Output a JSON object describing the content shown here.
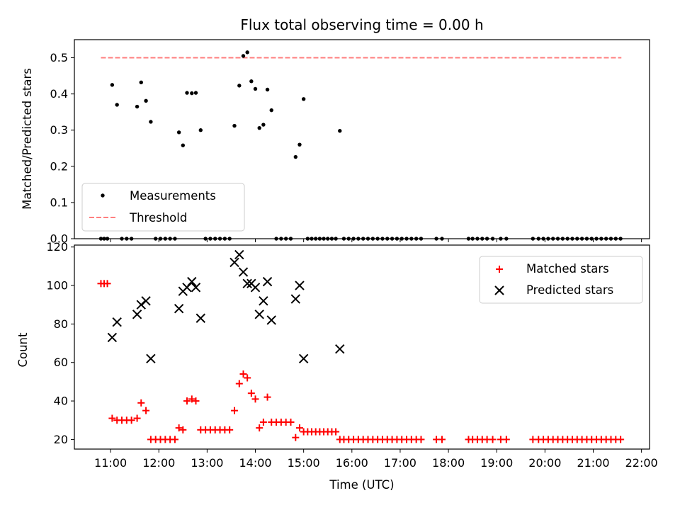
{
  "chart_data": [
    {
      "type": "scatter",
      "title": "Flux total observing time = 0.00 h",
      "xlabel": "",
      "ylabel": "Matched/Predicted stars",
      "xlim": [
        "10:15",
        "22:10"
      ],
      "ylim": [
        0,
        0.55
      ],
      "yticks": [
        0.0,
        0.1,
        0.2,
        0.3,
        0.4,
        0.5
      ],
      "yticklabels": [
        "0.0",
        "0.1",
        "0.2",
        "0.3",
        "0.4",
        "0.5"
      ],
      "legend": {
        "position": "lower-left",
        "entries": [
          "Measurements",
          "Threshold"
        ]
      },
      "series": [
        {
          "name": "Measurements",
          "style": "dot",
          "color": "#000000",
          "points": [
            [
              "10:48",
              0.0
            ],
            [
              "10:52",
              0.0
            ],
            [
              "10:56",
              0.0
            ],
            [
              "11:02",
              0.425
            ],
            [
              "11:08",
              0.37
            ],
            [
              "11:14",
              0.0
            ],
            [
              "11:20",
              0.0
            ],
            [
              "11:26",
              0.0
            ],
            [
              "11:33",
              0.365
            ],
            [
              "11:38",
              0.432
            ],
            [
              "11:44",
              0.381
            ],
            [
              "11:50",
              0.323
            ],
            [
              "11:56",
              0.0
            ],
            [
              "12:02",
              0.0
            ],
            [
              "12:08",
              0.0
            ],
            [
              "12:14",
              0.0
            ],
            [
              "12:20",
              0.0
            ],
            [
              "12:25",
              0.294
            ],
            [
              "12:30",
              0.258
            ],
            [
              "12:35",
              0.403
            ],
            [
              "12:41",
              0.402
            ],
            [
              "12:46",
              0.403
            ],
            [
              "12:52",
              0.3
            ],
            [
              "12:58",
              0.0
            ],
            [
              "13:04",
              0.0
            ],
            [
              "13:10",
              0.0
            ],
            [
              "13:16",
              0.0
            ],
            [
              "13:22",
              0.0
            ],
            [
              "13:28",
              0.0
            ],
            [
              "13:34",
              0.312
            ],
            [
              "13:40",
              0.423
            ],
            [
              "13:45",
              0.505
            ],
            [
              "13:50",
              0.515
            ],
            [
              "13:55",
              0.435
            ],
            [
              "14:00",
              0.414
            ],
            [
              "14:05",
              0.306
            ],
            [
              "14:10",
              0.315
            ],
            [
              "14:15",
              0.412
            ],
            [
              "14:20",
              0.355
            ],
            [
              "14:26",
              0.0
            ],
            [
              "14:32",
              0.0
            ],
            [
              "14:38",
              0.0
            ],
            [
              "14:44",
              0.0
            ],
            [
              "14:50",
              0.226
            ],
            [
              "14:55",
              0.26
            ],
            [
              "15:00",
              0.386
            ],
            [
              "15:05",
              0.0
            ],
            [
              "15:10",
              0.0
            ],
            [
              "15:15",
              0.0
            ],
            [
              "15:20",
              0.0
            ],
            [
              "15:25",
              0.0
            ],
            [
              "15:30",
              0.0
            ],
            [
              "15:35",
              0.0
            ],
            [
              "15:40",
              0.0
            ],
            [
              "15:45",
              0.298
            ],
            [
              "15:50",
              0.0
            ],
            [
              "15:56",
              0.0
            ],
            [
              "16:02",
              0.0
            ],
            [
              "16:08",
              0.0
            ],
            [
              "16:14",
              0.0
            ],
            [
              "16:20",
              0.0
            ],
            [
              "16:26",
              0.0
            ],
            [
              "16:32",
              0.0
            ],
            [
              "16:38",
              0.0
            ],
            [
              "16:44",
              0.0
            ],
            [
              "16:50",
              0.0
            ],
            [
              "16:56",
              0.0
            ],
            [
              "17:02",
              0.0
            ],
            [
              "17:08",
              0.0
            ],
            [
              "17:14",
              0.0
            ],
            [
              "17:20",
              0.0
            ],
            [
              "17:26",
              0.0
            ],
            [
              "17:45",
              0.0
            ],
            [
              "17:52",
              0.0
            ],
            [
              "18:25",
              0.0
            ],
            [
              "18:30",
              0.0
            ],
            [
              "18:36",
              0.0
            ],
            [
              "18:42",
              0.0
            ],
            [
              "18:48",
              0.0
            ],
            [
              "18:55",
              0.0
            ],
            [
              "19:05",
              0.0
            ],
            [
              "19:12",
              0.0
            ],
            [
              "19:45",
              0.0
            ],
            [
              "19:52",
              0.0
            ],
            [
              "19:58",
              0.0
            ],
            [
              "20:04",
              0.0
            ],
            [
              "20:10",
              0.0
            ],
            [
              "20:16",
              0.0
            ],
            [
              "20:22",
              0.0
            ],
            [
              "20:28",
              0.0
            ],
            [
              "20:34",
              0.0
            ],
            [
              "20:40",
              0.0
            ],
            [
              "20:46",
              0.0
            ],
            [
              "20:52",
              0.0
            ],
            [
              "20:58",
              0.0
            ],
            [
              "21:04",
              0.0
            ],
            [
              "21:10",
              0.0
            ],
            [
              "21:16",
              0.0
            ],
            [
              "21:22",
              0.0
            ],
            [
              "21:28",
              0.0
            ],
            [
              "21:34",
              0.0
            ]
          ]
        },
        {
          "name": "Threshold",
          "style": "dashed-line",
          "color": "#ff7f7f",
          "points": [
            [
              "10:48",
              0.5
            ],
            [
              "21:35",
              0.5
            ]
          ]
        }
      ]
    },
    {
      "type": "scatter",
      "title": "",
      "xlabel": "Time (UTC)",
      "ylabel": "Count",
      "xlim": [
        "10:15",
        "22:10"
      ],
      "ylim": [
        15,
        121
      ],
      "xticks": [
        "11:00",
        "12:00",
        "13:00",
        "14:00",
        "15:00",
        "16:00",
        "17:00",
        "18:00",
        "19:00",
        "20:00",
        "21:00",
        "22:00"
      ],
      "yticks": [
        20,
        40,
        60,
        80,
        100,
        120
      ],
      "yticklabels": [
        "20",
        "40",
        "60",
        "80",
        "100",
        "120"
      ],
      "legend": {
        "position": "upper-right",
        "entries": [
          "Matched stars",
          "Predicted stars"
        ]
      },
      "series": [
        {
          "name": "Matched stars",
          "marker": "plus",
          "color": "#ff0000",
          "points": [
            [
              "10:48",
              101
            ],
            [
              "10:52",
              101
            ],
            [
              "10:56",
              101
            ],
            [
              "11:02",
              31
            ],
            [
              "11:08",
              30
            ],
            [
              "11:14",
              30
            ],
            [
              "11:20",
              30
            ],
            [
              "11:26",
              30
            ],
            [
              "11:33",
              31
            ],
            [
              "11:38",
              39
            ],
            [
              "11:44",
              35
            ],
            [
              "11:50",
              20
            ],
            [
              "11:56",
              20
            ],
            [
              "12:02",
              20
            ],
            [
              "12:08",
              20
            ],
            [
              "12:14",
              20
            ],
            [
              "12:20",
              20
            ],
            [
              "12:25",
              26
            ],
            [
              "12:30",
              25
            ],
            [
              "12:35",
              40
            ],
            [
              "12:41",
              41
            ],
            [
              "12:46",
              40
            ],
            [
              "12:52",
              25
            ],
            [
              "12:58",
              25
            ],
            [
              "13:04",
              25
            ],
            [
              "13:10",
              25
            ],
            [
              "13:16",
              25
            ],
            [
              "13:22",
              25
            ],
            [
              "13:28",
              25
            ],
            [
              "13:34",
              35
            ],
            [
              "13:40",
              49
            ],
            [
              "13:45",
              54
            ],
            [
              "13:50",
              52
            ],
            [
              "13:55",
              44
            ],
            [
              "14:00",
              41
            ],
            [
              "14:05",
              26
            ],
            [
              "14:10",
              29
            ],
            [
              "14:15",
              42
            ],
            [
              "14:20",
              29
            ],
            [
              "14:26",
              29
            ],
            [
              "14:32",
              29
            ],
            [
              "14:38",
              29
            ],
            [
              "14:44",
              29
            ],
            [
              "14:50",
              21
            ],
            [
              "14:55",
              26
            ],
            [
              "15:00",
              24
            ],
            [
              "15:05",
              24
            ],
            [
              "15:10",
              24
            ],
            [
              "15:15",
              24
            ],
            [
              "15:20",
              24
            ],
            [
              "15:25",
              24
            ],
            [
              "15:30",
              24
            ],
            [
              "15:35",
              24
            ],
            [
              "15:40",
              24
            ],
            [
              "15:45",
              20
            ],
            [
              "15:50",
              20
            ],
            [
              "15:56",
              20
            ],
            [
              "16:02",
              20
            ],
            [
              "16:08",
              20
            ],
            [
              "16:14",
              20
            ],
            [
              "16:20",
              20
            ],
            [
              "16:26",
              20
            ],
            [
              "16:32",
              20
            ],
            [
              "16:38",
              20
            ],
            [
              "16:44",
              20
            ],
            [
              "16:50",
              20
            ],
            [
              "16:56",
              20
            ],
            [
              "17:02",
              20
            ],
            [
              "17:08",
              20
            ],
            [
              "17:14",
              20
            ],
            [
              "17:20",
              20
            ],
            [
              "17:26",
              20
            ],
            [
              "17:45",
              20
            ],
            [
              "17:52",
              20
            ],
            [
              "18:25",
              20
            ],
            [
              "18:30",
              20
            ],
            [
              "18:36",
              20
            ],
            [
              "18:42",
              20
            ],
            [
              "18:48",
              20
            ],
            [
              "18:55",
              20
            ],
            [
              "19:05",
              20
            ],
            [
              "19:12",
              20
            ],
            [
              "19:45",
              20
            ],
            [
              "19:52",
              20
            ],
            [
              "19:58",
              20
            ],
            [
              "20:04",
              20
            ],
            [
              "20:10",
              20
            ],
            [
              "20:16",
              20
            ],
            [
              "20:22",
              20
            ],
            [
              "20:28",
              20
            ],
            [
              "20:34",
              20
            ],
            [
              "20:40",
              20
            ],
            [
              "20:46",
              20
            ],
            [
              "20:52",
              20
            ],
            [
              "20:58",
              20
            ],
            [
              "21:04",
              20
            ],
            [
              "21:10",
              20
            ],
            [
              "21:16",
              20
            ],
            [
              "21:22",
              20
            ],
            [
              "21:28",
              20
            ],
            [
              "21:34",
              20
            ]
          ]
        },
        {
          "name": "Predicted stars",
          "marker": "x",
          "color": "#000000",
          "points": [
            [
              "11:02",
              73
            ],
            [
              "11:08",
              81
            ],
            [
              "11:33",
              85
            ],
            [
              "11:38",
              90
            ],
            [
              "11:44",
              92
            ],
            [
              "11:50",
              62
            ],
            [
              "12:25",
              88
            ],
            [
              "12:30",
              97
            ],
            [
              "12:35",
              99
            ],
            [
              "12:41",
              102
            ],
            [
              "12:46",
              99
            ],
            [
              "12:52",
              83
            ],
            [
              "13:34",
              112
            ],
            [
              "13:40",
              116
            ],
            [
              "13:45",
              107
            ],
            [
              "13:50",
              101
            ],
            [
              "13:55",
              101
            ],
            [
              "14:00",
              99
            ],
            [
              "14:05",
              85
            ],
            [
              "14:10",
              92
            ],
            [
              "14:15",
              102
            ],
            [
              "14:20",
              82
            ],
            [
              "14:50",
              93
            ],
            [
              "14:55",
              100
            ],
            [
              "15:00",
              62
            ],
            [
              "15:45",
              67
            ]
          ]
        }
      ]
    }
  ]
}
